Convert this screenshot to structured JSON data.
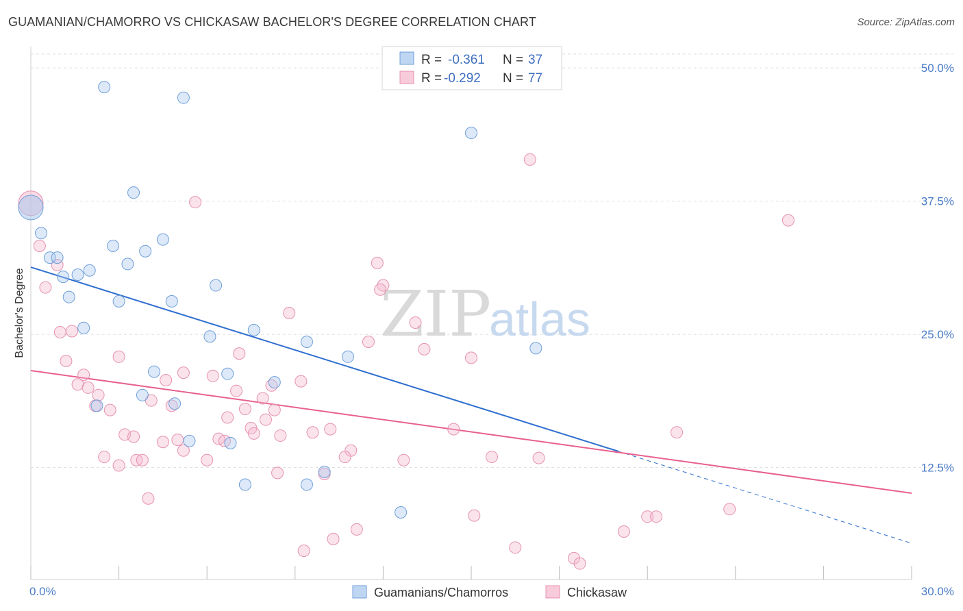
{
  "title": "GUAMANIAN/CHAMORRO VS CHICKASAW BACHELOR'S DEGREE CORRELATION CHART",
  "source": "Source: ZipAtlas.com",
  "watermark": {
    "part1": "ZIP",
    "part2": "atlas"
  },
  "stats": {
    "r_label": "R =",
    "n_label": "N =",
    "rows": [
      {
        "r": "-0.361",
        "n": "37"
      },
      {
        "r": "-0.292",
        "n": "77"
      }
    ]
  },
  "chart_data": {
    "type": "scatter",
    "title": "GUAMANIAN/CHAMORRO VS CHICKASAW BACHELOR'S DEGREE CORRELATION CHART",
    "xlabel": "",
    "ylabel": "Bachelor's Degree",
    "xlim": [
      0,
      30
    ],
    "ylim": [
      2,
      52
    ],
    "x_ticks": [
      "0.0%",
      "30.0%"
    ],
    "y_ticks": [
      {
        "value": 12.5,
        "label": "12.5%"
      },
      {
        "value": 25.0,
        "label": "25.0%"
      },
      {
        "value": 37.5,
        "label": "37.5%"
      },
      {
        "value": 50.0,
        "label": "50.0%"
      }
    ],
    "grid": true,
    "legend_position": "bottom-center",
    "series": [
      {
        "name": "Guamanians/Chamorros",
        "color": "#a9c8ef",
        "stroke": "#6f9fd8",
        "line_color": "#2f6fcf",
        "trend": {
          "x0": 0,
          "y0": 31.3,
          "x1": 30,
          "y1": 5.4,
          "solid_until_x": 20.0
        },
        "points": [
          [
            2.5,
            48.2
          ],
          [
            5.2,
            47.2
          ],
          [
            15.0,
            43.9
          ],
          [
            3.5,
            38.3
          ],
          [
            0.0,
            36.9
          ],
          [
            0.35,
            34.5
          ],
          [
            2.8,
            33.3
          ],
          [
            3.9,
            32.8
          ],
          [
            4.5,
            33.9
          ],
          [
            0.65,
            32.2
          ],
          [
            0.9,
            32.2
          ],
          [
            3.3,
            31.6
          ],
          [
            2.0,
            31.0
          ],
          [
            1.6,
            30.6
          ],
          [
            1.1,
            30.4
          ],
          [
            6.3,
            29.6
          ],
          [
            1.3,
            28.5
          ],
          [
            3.0,
            28.1
          ],
          [
            4.8,
            28.1
          ],
          [
            1.8,
            25.6
          ],
          [
            7.6,
            25.4
          ],
          [
            6.1,
            24.8
          ],
          [
            9.4,
            24.3
          ],
          [
            17.2,
            23.7
          ],
          [
            10.8,
            22.9
          ],
          [
            4.2,
            21.5
          ],
          [
            6.7,
            21.3
          ],
          [
            8.3,
            20.5
          ],
          [
            3.8,
            19.3
          ],
          [
            2.25,
            18.3
          ],
          [
            4.9,
            18.5
          ],
          [
            5.4,
            15.0
          ],
          [
            6.8,
            14.8
          ],
          [
            10.0,
            12.1
          ],
          [
            7.3,
            10.9
          ],
          [
            9.4,
            10.9
          ],
          [
            12.6,
            8.3
          ]
        ]
      },
      {
        "name": "Chickasaw",
        "color": "#f5b9cf",
        "stroke": "#e592b0",
        "line_color": "#e8608f",
        "trend": {
          "x0": 0,
          "y0": 21.6,
          "x1": 30,
          "y1": 10.1,
          "solid_until_x": 30
        },
        "points": [
          [
            5.6,
            37.4
          ],
          [
            0.0,
            37.3
          ],
          [
            17.0,
            41.4
          ],
          [
            25.8,
            35.7
          ],
          [
            0.3,
            33.3
          ],
          [
            0.9,
            31.5
          ],
          [
            11.8,
            31.7
          ],
          [
            12.0,
            29.6
          ],
          [
            11.9,
            29.2
          ],
          [
            0.5,
            29.4
          ],
          [
            8.8,
            27.0
          ],
          [
            13.1,
            26.1
          ],
          [
            1.0,
            25.2
          ],
          [
            1.4,
            25.3
          ],
          [
            11.5,
            24.3
          ],
          [
            13.4,
            23.6
          ],
          [
            7.1,
            23.2
          ],
          [
            3.0,
            22.9
          ],
          [
            15.0,
            22.8
          ],
          [
            1.2,
            22.5
          ],
          [
            1.8,
            21.2
          ],
          [
            5.2,
            21.4
          ],
          [
            6.2,
            21.1
          ],
          [
            4.6,
            20.7
          ],
          [
            9.2,
            20.6
          ],
          [
            1.6,
            20.3
          ],
          [
            8.2,
            20.2
          ],
          [
            1.95,
            20.0
          ],
          [
            7.0,
            19.7
          ],
          [
            2.3,
            19.3
          ],
          [
            7.9,
            19.0
          ],
          [
            4.1,
            18.8
          ],
          [
            2.2,
            18.3
          ],
          [
            4.8,
            18.3
          ],
          [
            2.7,
            17.9
          ],
          [
            7.3,
            18.0
          ],
          [
            8.3,
            17.9
          ],
          [
            6.7,
            17.2
          ],
          [
            8.0,
            17.0
          ],
          [
            14.4,
            16.1
          ],
          [
            7.5,
            16.2
          ],
          [
            10.2,
            16.1
          ],
          [
            9.6,
            15.8
          ],
          [
            22.0,
            15.8
          ],
          [
            7.6,
            15.7
          ],
          [
            8.5,
            15.5
          ],
          [
            3.2,
            15.6
          ],
          [
            3.5,
            15.4
          ],
          [
            6.4,
            15.2
          ],
          [
            5.0,
            15.1
          ],
          [
            6.6,
            15.0
          ],
          [
            4.5,
            14.9
          ],
          [
            10.9,
            14.1
          ],
          [
            5.2,
            14.1
          ],
          [
            2.5,
            13.5
          ],
          [
            10.7,
            13.5
          ],
          [
            15.7,
            13.5
          ],
          [
            17.3,
            13.4
          ],
          [
            3.6,
            13.2
          ],
          [
            3.8,
            13.2
          ],
          [
            6.0,
            13.2
          ],
          [
            12.7,
            13.2
          ],
          [
            3.0,
            12.7
          ],
          [
            10.0,
            11.9
          ],
          [
            4.0,
            9.6
          ],
          [
            23.8,
            8.6
          ],
          [
            15.1,
            8.0
          ],
          [
            21.0,
            7.9
          ],
          [
            21.3,
            7.9
          ],
          [
            20.2,
            6.5
          ],
          [
            11.1,
            6.7
          ],
          [
            10.3,
            5.8
          ],
          [
            16.5,
            5.0
          ],
          [
            9.3,
            4.7
          ],
          [
            18.5,
            4.0
          ],
          [
            18.7,
            3.5
          ],
          [
            8.4,
            12.0
          ]
        ]
      }
    ]
  }
}
